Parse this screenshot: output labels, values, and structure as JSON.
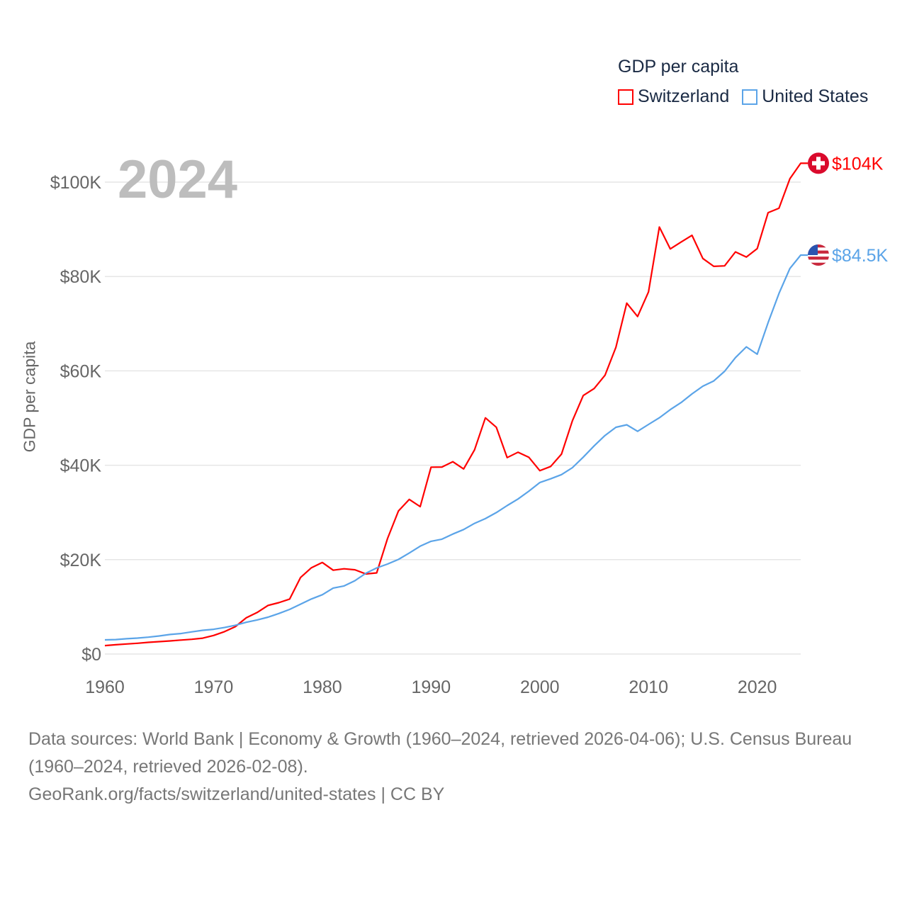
{
  "chart_data": {
    "type": "line",
    "title": "GDP per capita",
    "year_label": "2024",
    "xlabel": "",
    "ylabel": "GDP per capita",
    "xlim": [
      1960,
      2024
    ],
    "ylim": [
      0,
      100000
    ],
    "grid": true,
    "legend_placement": "top-right",
    "x_ticks": [
      1960,
      1970,
      1980,
      1990,
      2000,
      2010,
      2020
    ],
    "x_tick_labels": [
      "1960",
      "1970",
      "1980",
      "1990",
      "2000",
      "2010",
      "2020"
    ],
    "y_ticks": [
      0,
      20000,
      40000,
      60000,
      80000,
      100000
    ],
    "y_tick_labels": [
      "$0",
      "$20K",
      "$40K",
      "$60K",
      "$80K",
      "$100K"
    ],
    "x": [
      1960,
      1961,
      1962,
      1963,
      1964,
      1965,
      1966,
      1967,
      1968,
      1969,
      1970,
      1971,
      1972,
      1973,
      1974,
      1975,
      1976,
      1977,
      1978,
      1979,
      1980,
      1981,
      1982,
      1983,
      1984,
      1985,
      1986,
      1987,
      1988,
      1989,
      1990,
      1991,
      1992,
      1993,
      1994,
      1995,
      1996,
      1997,
      1998,
      1999,
      2000,
      2001,
      2002,
      2003,
      2004,
      2005,
      2006,
      2007,
      2008,
      2009,
      2010,
      2011,
      2012,
      2013,
      2014,
      2015,
      2016,
      2017,
      2018,
      2019,
      2020,
      2021,
      2022,
      2023,
      2024
    ],
    "series": [
      {
        "name": "Switzerland",
        "color": "#ff0000",
        "end_label": "$104K",
        "flag": "swiss-flag",
        "values": [
          1787,
          1972,
          2131,
          2279,
          2476,
          2621,
          2779,
          2956,
          3125,
          3365,
          3939,
          4739,
          5800,
          7674,
          8800,
          10294,
          10885,
          11652,
          16230,
          18288,
          19398,
          17763,
          18057,
          17855,
          16973,
          17195,
          24479,
          30310,
          32762,
          31224,
          39597,
          39630,
          40755,
          39226,
          43277,
          50050,
          48069,
          41620,
          42759,
          41684,
          38866,
          39741,
          42361,
          49428,
          54777,
          56268,
          59067,
          65004,
          74360,
          71524,
          76748,
          90476,
          85836,
          87304,
          88725,
          83807,
          82154,
          82254,
          85217,
          84122,
          85897,
          93525,
          94465,
          100700,
          103998
        ]
      },
      {
        "name": "United States",
        "color": "#5ba4e8",
        "end_label": "$84.5K",
        "flag": "us-flag",
        "values": [
          3007,
          3067,
          3244,
          3375,
          3574,
          3828,
          4146,
          4336,
          4696,
          5032,
          5234,
          5609,
          6094,
          6726,
          7226,
          7801,
          8592,
          9453,
          10565,
          11674,
          12575,
          13976,
          14434,
          15544,
          17121,
          18237,
          19071,
          20039,
          21417,
          22857,
          23889,
          24342,
          25419,
          26387,
          27695,
          28691,
          29968,
          31459,
          32854,
          34515,
          36330,
          37134,
          38023,
          39496,
          41713,
          44115,
          46299,
          48050,
          48570,
          47195,
          48651,
          50066,
          51784,
          53291,
          55124,
          56763,
          57867,
          59915,
          62805,
          65095,
          63528,
          70220,
          76399,
          81695,
          84534
        ]
      }
    ]
  },
  "footer": {
    "sources": "Data sources: World Bank | Economy & Growth (1960–2024, retrieved 2026-04-06); U.S. Census Bureau (1960–2024, retrieved 2026-02-08).",
    "attribution": "GeoRank.org/facts/switzerland/united-states | CC BY"
  }
}
